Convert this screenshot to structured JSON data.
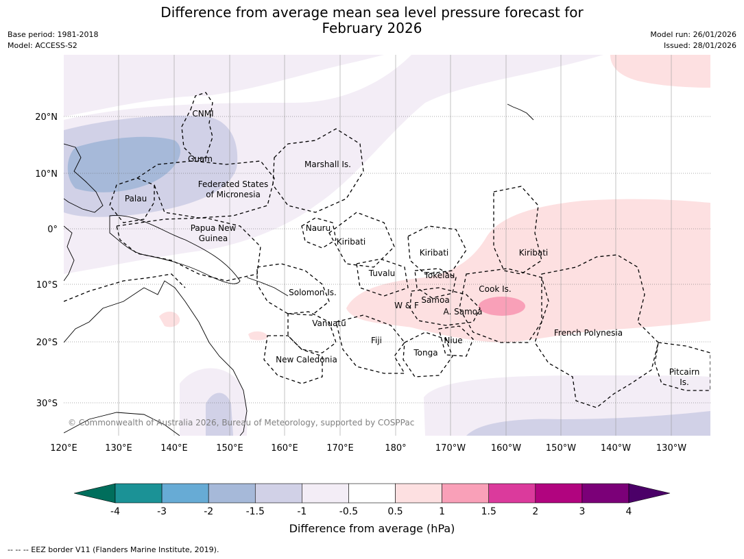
{
  "title": {
    "line1": "Difference from average mean sea level pressure forecast for",
    "line2": "February 2026"
  },
  "meta_left": {
    "base_period": "Base period: 1981-2018",
    "model": "Model: ACCESS-S2"
  },
  "meta_right": {
    "model_run": "Model run: 26/01/2026",
    "issued": "Issued: 28/01/2026"
  },
  "copyright": "© Commonwealth of Australia 2026, Bureau of Meteorology, supported by COSPPac",
  "lat_labels": [
    "20°N",
    "10°N",
    "0°",
    "10°S",
    "20°S",
    "30°S"
  ],
  "lon_labels": [
    "120°E",
    "130°E",
    "140°E",
    "150°E",
    "160°E",
    "170°E",
    "180°",
    "170°W",
    "160°W",
    "150°W",
    "140°W",
    "130°W"
  ],
  "regions": [
    {
      "text": "CNMI"
    },
    {
      "text": "Guam"
    },
    {
      "text": "Marshall Is."
    },
    {
      "text": "Federated States"
    },
    {
      "text": "of Micronesia"
    },
    {
      "text": "Palau"
    },
    {
      "text": "Papua New"
    },
    {
      "text": "Guinea"
    },
    {
      "text": "Nauru"
    },
    {
      "text": "Kiribati"
    },
    {
      "text": "Kiribati"
    },
    {
      "text": "Kiribati"
    },
    {
      "text": "Tuvalu"
    },
    {
      "text": "Tokelau"
    },
    {
      "text": "Cook Is."
    },
    {
      "text": "Solomon Is."
    },
    {
      "text": "W & F"
    },
    {
      "text": "Samoa"
    },
    {
      "text": "A. Samoa"
    },
    {
      "text": "Vanuatu"
    },
    {
      "text": "Fiji"
    },
    {
      "text": "Niue"
    },
    {
      "text": "Tonga"
    },
    {
      "text": "French Polynesia"
    },
    {
      "text": "New Caledonia"
    },
    {
      "text": "Pitcairn"
    },
    {
      "text": "Is."
    }
  ],
  "colorbar": {
    "title": "Difference from average (hPa)",
    "ticks": [
      "-4",
      "-3",
      "-2",
      "-1.5",
      "-1",
      "-0.5",
      "0.5",
      "1",
      "1.5",
      "2",
      "3",
      "4"
    ],
    "low_extend_color": "#006e5c",
    "high_extend_color": "#4b0068",
    "colors": [
      "#1b9296",
      "#67abd5",
      "#a6b9d9",
      "#d1d1e7",
      "#f3edf6",
      "#ffffff",
      "#fde0e1",
      "#f9a0b8",
      "#db3a9c",
      "#b1047f",
      "#7b0078"
    ]
  },
  "footer": "--  --  -- EEZ border V11 (Flanders Marine Institute, 2019)."
}
